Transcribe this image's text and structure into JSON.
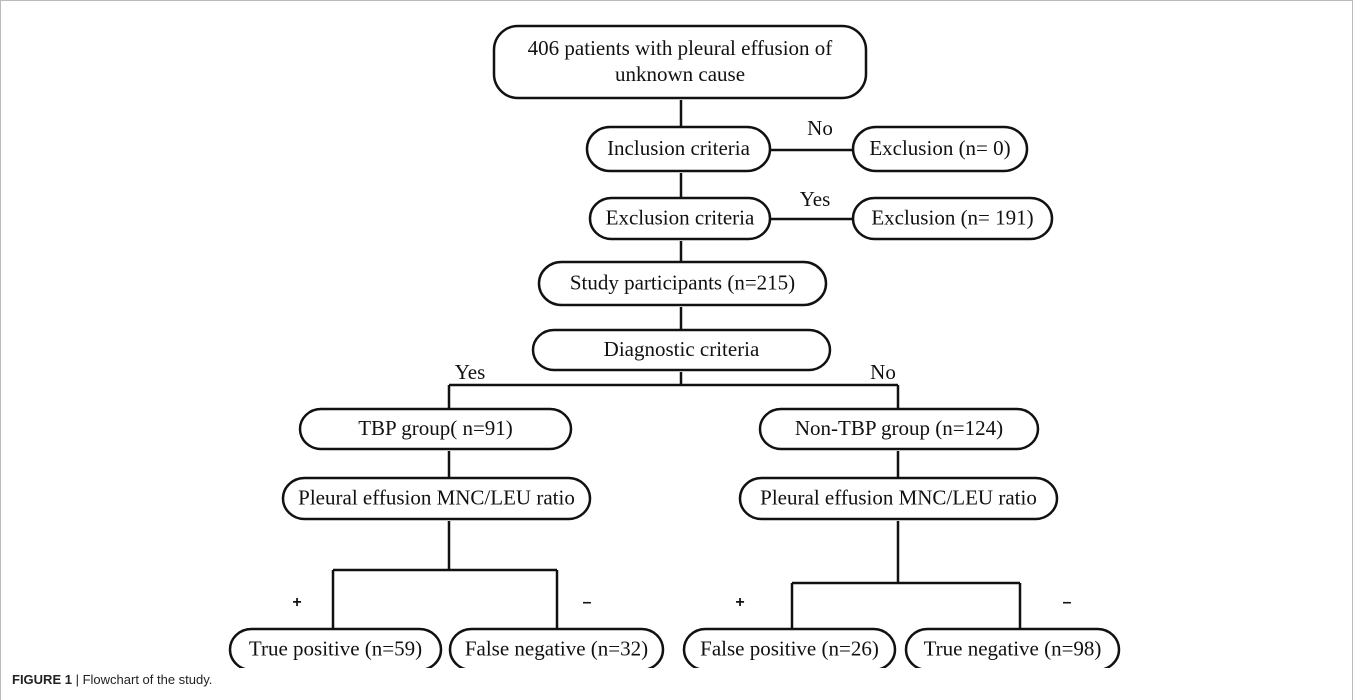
{
  "nodes": [
    {
      "lines": [
        "406 patients with pleural effusion of",
        "unknown cause"
      ]
    },
    {
      "label": "Inclusion criteria"
    },
    {
      "label": "Exclusion (n= 0)"
    },
    {
      "label": "Exclusion criteria"
    },
    {
      "label": "Exclusion (n= 191)"
    },
    {
      "label": "Study participants (n=215)"
    },
    {
      "label": "Diagnostic criteria"
    },
    {
      "label": "TBP group( n=91)"
    },
    {
      "label": "Non-TBP group (n=124)"
    },
    {
      "label": "Pleural effusion MNC/LEU ratio"
    },
    {
      "label": "Pleural effusion MNC/LEU ratio"
    },
    {
      "label": "True positive (n=59)"
    },
    {
      "label": "False negative (n=32)"
    },
    {
      "label": "False positive (n=26)"
    },
    {
      "label": "True negative (n=98)"
    }
  ],
  "edge_labels": [
    "No",
    "Yes",
    "Yes",
    "No",
    "+",
    "–",
    "+",
    "–"
  ],
  "figure": {
    "label": "FIGURE 1",
    "caption": "| Flowchart of the study."
  }
}
